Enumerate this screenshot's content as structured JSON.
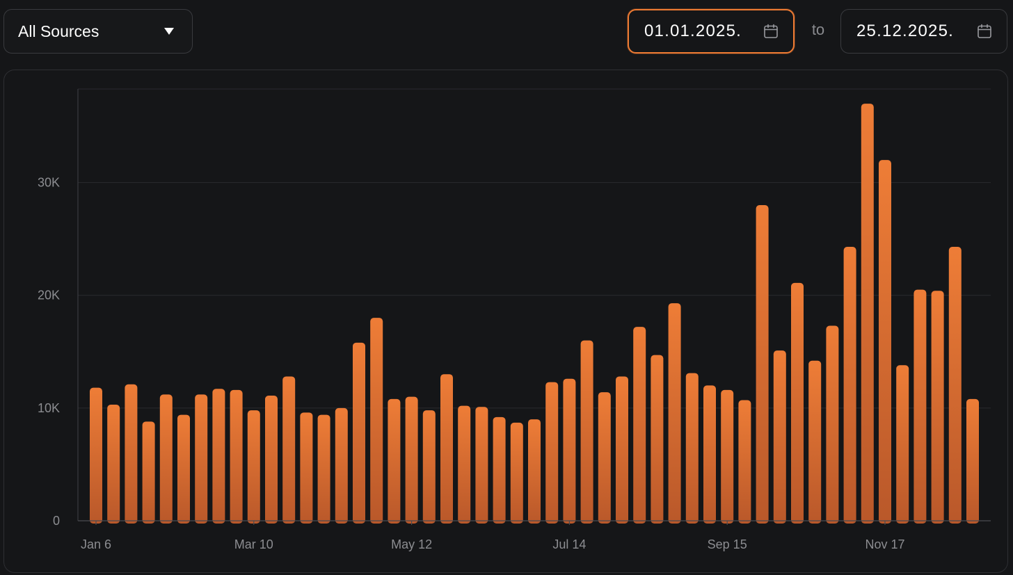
{
  "filter": {
    "source_label": "All Sources"
  },
  "date_range": {
    "from": "01.01.2025.",
    "separator": "to",
    "to": "25.12.2025."
  },
  "colors": {
    "accent": "#ee7b33",
    "bar_top": "#ee7d37",
    "bar_bottom": "#b9582a",
    "grid": "#2a2b2f",
    "axis_text": "#8c8d91"
  },
  "chart_data": {
    "type": "bar",
    "x_tick_labels": [
      "Jan 6",
      "Mar 10",
      "May 12",
      "Jul 14",
      "Sep 15",
      "Nov 17"
    ],
    "x_tick_indices": [
      0,
      9,
      18,
      27,
      36,
      45
    ],
    "y_ticks": [
      0,
      10000,
      20000,
      30000
    ],
    "y_tick_labels": [
      "0",
      "10K",
      "20K",
      "30K"
    ],
    "ylim": [
      0,
      38300
    ],
    "grid": true,
    "values": [
      11800,
      10300,
      12100,
      8800,
      11200,
      9400,
      11200,
      11700,
      11600,
      9800,
      11100,
      12800,
      9600,
      9400,
      10000,
      15800,
      18000,
      10800,
      11000,
      9800,
      13000,
      10200,
      10100,
      9200,
      8700,
      9000,
      12300,
      12600,
      16000,
      11400,
      12800,
      17200,
      14700,
      19300,
      13100,
      12000,
      11600,
      10700,
      28000,
      15100,
      21100,
      14200,
      17300,
      24300,
      37000,
      32000,
      13800,
      20500,
      20400,
      24300,
      10800
    ]
  }
}
